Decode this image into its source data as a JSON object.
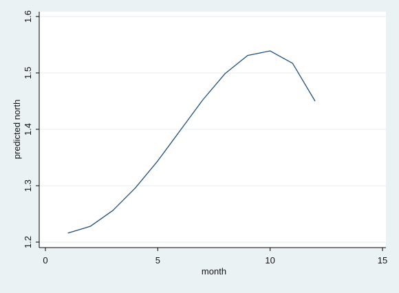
{
  "chart_data": {
    "type": "line",
    "xlabel": "month",
    "ylabel": "predicted north",
    "xlim": [
      0,
      15
    ],
    "ylim": [
      1.2,
      1.6
    ],
    "x_ticks": [
      0,
      5,
      10,
      15
    ],
    "y_ticks": [
      1.2,
      1.3,
      1.4,
      1.5,
      1.6
    ],
    "x_tick_labels": [
      "0",
      "5",
      "10",
      "15"
    ],
    "y_tick_labels": [
      "1.2",
      "1.3",
      "1.4",
      "1.5",
      "1.6"
    ],
    "grid": "horizontal",
    "series": [
      {
        "x": [
          1,
          2,
          3,
          4,
          5,
          6,
          7,
          8,
          9,
          10,
          11,
          12
        ],
        "values": [
          1.216,
          1.228,
          1.256,
          1.296,
          1.344,
          1.398,
          1.452,
          1.499,
          1.531,
          1.539,
          1.517,
          1.45
        ]
      }
    ],
    "colors": {
      "background": "#eaf2f3",
      "plot_background": "#ffffff",
      "line": "#1f4e79",
      "grid": "#e6eef0",
      "axis": "#000000"
    }
  }
}
